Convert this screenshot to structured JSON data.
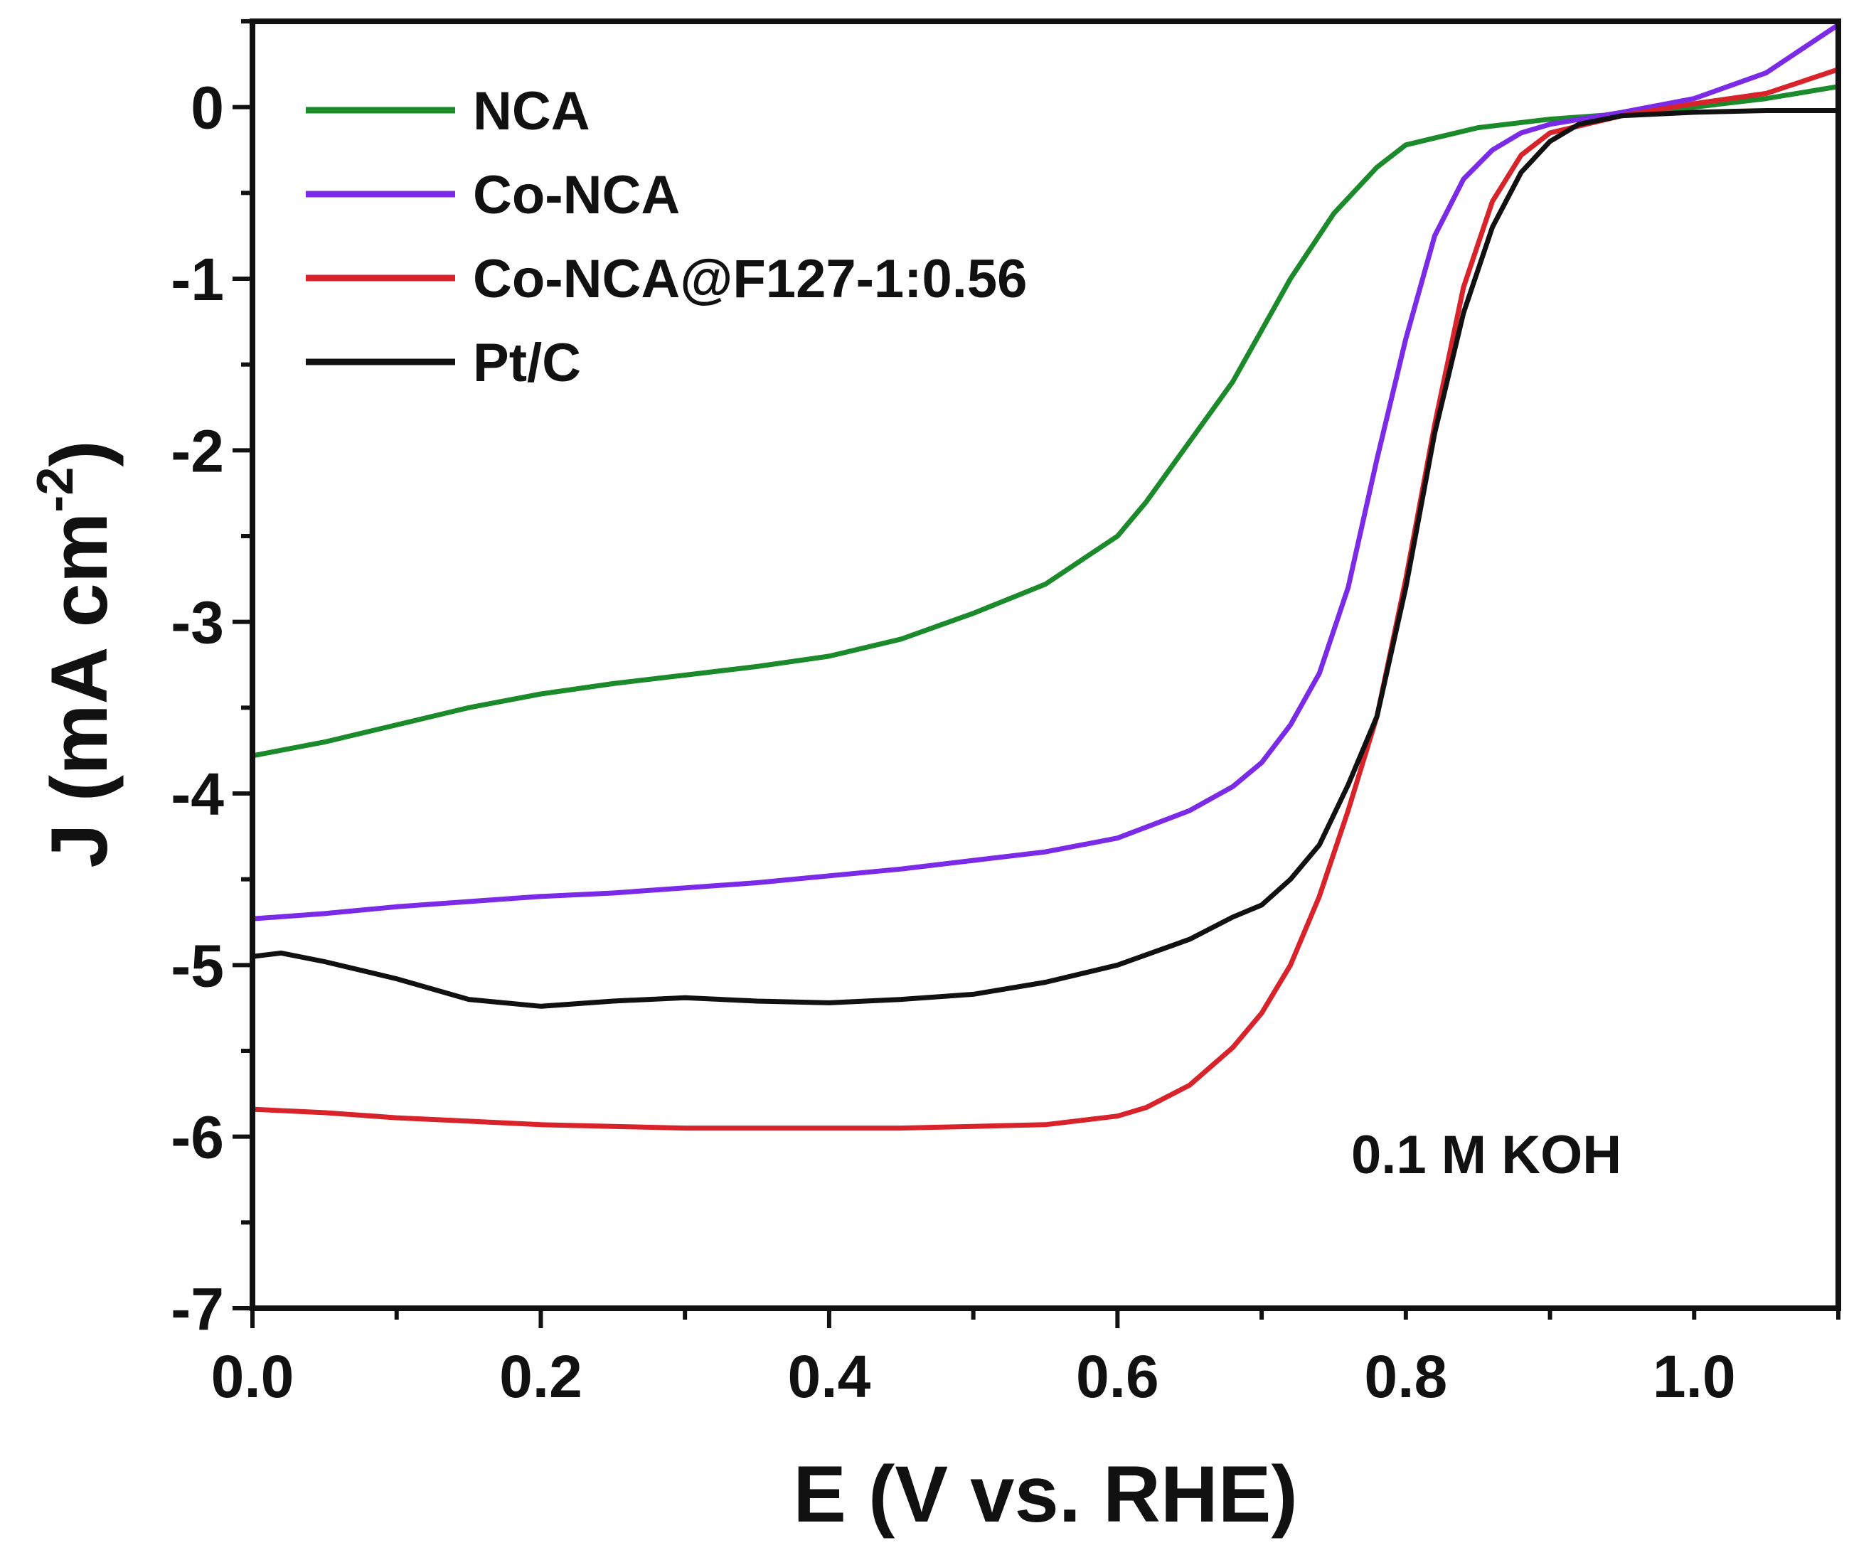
{
  "chart_data": {
    "type": "line",
    "title": "",
    "xlabel": "E (V vs. RHE)",
    "ylabel_main": "J (mA cm",
    "ylabel_sup": "-2",
    "ylabel_close": ")",
    "xlim": [
      0.0,
      1.1
    ],
    "ylim": [
      -7,
      0.5
    ],
    "xticks": [
      0.0,
      0.2,
      0.4,
      0.6,
      0.8,
      1.0
    ],
    "xtick_labels": [
      "0.0",
      "0.2",
      "0.4",
      "0.6",
      "0.8",
      "1.0"
    ],
    "yticks": [
      0,
      -1,
      -2,
      -3,
      -4,
      -5,
      -6,
      -7
    ],
    "ytick_labels": [
      "0",
      "-1",
      "-2",
      "-3",
      "-4",
      "-5",
      "-6",
      "-7"
    ],
    "legend_position": "top-left",
    "annotation": "0.1 M KOH",
    "series": [
      {
        "name": "NCA",
        "color": "#1b8a2a",
        "x": [
          0.0,
          0.05,
          0.1,
          0.15,
          0.2,
          0.25,
          0.3,
          0.35,
          0.4,
          0.45,
          0.5,
          0.55,
          0.6,
          0.62,
          0.65,
          0.68,
          0.7,
          0.72,
          0.75,
          0.78,
          0.8,
          0.85,
          0.9,
          0.95,
          1.0,
          1.05,
          1.1
        ],
        "values": [
          -3.78,
          -3.7,
          -3.6,
          -3.5,
          -3.42,
          -3.36,
          -3.31,
          -3.26,
          -3.2,
          -3.1,
          -2.95,
          -2.78,
          -2.5,
          -2.3,
          -1.95,
          -1.6,
          -1.3,
          -1.0,
          -0.62,
          -0.35,
          -0.22,
          -0.12,
          -0.07,
          -0.04,
          0.0,
          0.05,
          0.12
        ]
      },
      {
        "name": "Co-NCA",
        "color": "#7b2be8",
        "x": [
          0.0,
          0.05,
          0.1,
          0.15,
          0.2,
          0.25,
          0.3,
          0.35,
          0.4,
          0.45,
          0.5,
          0.55,
          0.6,
          0.65,
          0.68,
          0.7,
          0.72,
          0.74,
          0.76,
          0.78,
          0.8,
          0.82,
          0.84,
          0.86,
          0.88,
          0.9,
          0.95,
          1.0,
          1.05,
          1.1
        ],
        "values": [
          -4.73,
          -4.7,
          -4.66,
          -4.63,
          -4.6,
          -4.58,
          -4.55,
          -4.52,
          -4.48,
          -4.44,
          -4.39,
          -4.34,
          -4.26,
          -4.1,
          -3.96,
          -3.82,
          -3.6,
          -3.3,
          -2.8,
          -2.05,
          -1.35,
          -0.75,
          -0.42,
          -0.25,
          -0.15,
          -0.1,
          -0.03,
          0.05,
          0.2,
          0.48
        ]
      },
      {
        "name": "Co-NCA@F127-1:0.56",
        "color": "#d8232a",
        "x": [
          0.0,
          0.05,
          0.1,
          0.15,
          0.2,
          0.25,
          0.3,
          0.35,
          0.4,
          0.45,
          0.5,
          0.55,
          0.6,
          0.62,
          0.65,
          0.68,
          0.7,
          0.72,
          0.74,
          0.76,
          0.78,
          0.8,
          0.82,
          0.84,
          0.86,
          0.88,
          0.9,
          0.95,
          1.0,
          1.05,
          1.1
        ],
        "values": [
          -5.84,
          -5.86,
          -5.89,
          -5.91,
          -5.93,
          -5.94,
          -5.95,
          -5.95,
          -5.95,
          -5.95,
          -5.94,
          -5.93,
          -5.88,
          -5.83,
          -5.7,
          -5.48,
          -5.28,
          -5.0,
          -4.6,
          -4.1,
          -3.55,
          -2.75,
          -1.85,
          -1.05,
          -0.55,
          -0.28,
          -0.15,
          -0.05,
          0.02,
          0.08,
          0.22
        ]
      },
      {
        "name": "Pt/C",
        "color": "#111111",
        "x": [
          0.0,
          0.02,
          0.05,
          0.1,
          0.15,
          0.2,
          0.25,
          0.3,
          0.35,
          0.4,
          0.45,
          0.5,
          0.55,
          0.6,
          0.65,
          0.68,
          0.7,
          0.72,
          0.74,
          0.76,
          0.78,
          0.8,
          0.82,
          0.84,
          0.86,
          0.88,
          0.9,
          0.92,
          0.95,
          1.0,
          1.05,
          1.1
        ],
        "values": [
          -4.95,
          -4.93,
          -4.98,
          -5.08,
          -5.2,
          -5.24,
          -5.21,
          -5.19,
          -5.21,
          -5.22,
          -5.2,
          -5.17,
          -5.1,
          -5.0,
          -4.85,
          -4.72,
          -4.65,
          -4.5,
          -4.3,
          -3.95,
          -3.55,
          -2.8,
          -1.9,
          -1.2,
          -0.7,
          -0.38,
          -0.2,
          -0.1,
          -0.05,
          -0.03,
          -0.02,
          -0.02
        ]
      }
    ]
  }
}
